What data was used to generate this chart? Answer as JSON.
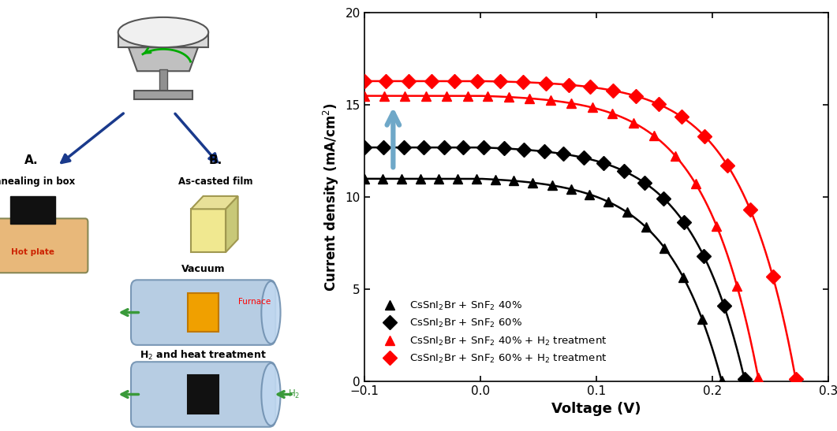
{
  "chart": {
    "xlim": [
      -0.1,
      0.3
    ],
    "ylim": [
      0,
      20
    ],
    "xlabel": "Voltage (V)",
    "ylabel": "Current density (mA/cm²)",
    "xticks": [
      -0.1,
      0.0,
      0.1,
      0.2,
      0.3
    ],
    "yticks": [
      0,
      5,
      10,
      15,
      20
    ]
  },
  "series": [
    {
      "jsc": 11.0,
      "voc": 0.208,
      "n": 1.8,
      "color": "black",
      "marker": "^",
      "label": "CsSnI$_2$Br + SnF$_2$ 40%"
    },
    {
      "jsc": 12.7,
      "voc": 0.228,
      "n": 1.8,
      "color": "black",
      "marker": "D",
      "label": "CsSnI$_2$Br + SnF$_2$ 60%"
    },
    {
      "jsc": 15.5,
      "voc": 0.24,
      "n": 1.8,
      "color": "red",
      "marker": "^",
      "label": "CsSnI$_2$Br + SnF$_2$ 40% + H$_2$ treatment"
    },
    {
      "jsc": 16.3,
      "voc": 0.272,
      "n": 1.8,
      "color": "red",
      "marker": "D",
      "label": "CsSnI$_2$Br + SnF$_2$ 60% + H$_2$ treatment"
    }
  ],
  "arrow_color": "#6fa8c8",
  "figure_width": 10.61,
  "figure_height": 5.47,
  "dpi": 100
}
